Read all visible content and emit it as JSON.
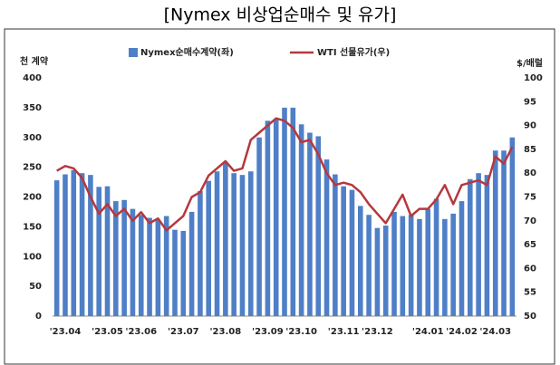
{
  "chart_data": {
    "type": "bar_line",
    "title": "[Nymex 비상업순매수 및 유가]",
    "y_label": "천 계약",
    "y2_label": "$/배럴",
    "legend": "top",
    "grid": false,
    "categories": [
      null,
      "'23.04",
      null,
      null,
      null,
      null,
      "'23.05",
      null,
      null,
      null,
      "'23.06",
      null,
      null,
      null,
      null,
      "'23.07",
      null,
      null,
      null,
      null,
      "'23.08",
      null,
      null,
      null,
      null,
      "'23.09",
      null,
      null,
      null,
      "'23.10",
      null,
      null,
      null,
      null,
      "'23.11",
      null,
      null,
      null,
      "'23.12",
      null,
      null,
      null,
      null,
      null,
      "'24.01",
      null,
      null,
      null,
      "'24.02",
      null,
      null,
      null,
      "'24.03",
      null,
      null
    ],
    "ylim": [
      0,
      400
    ],
    "yticks": [
      0,
      50,
      100,
      150,
      200,
      250,
      300,
      350,
      400
    ],
    "y2lim": [
      50,
      100
    ],
    "y2ticks": [
      50,
      55,
      60,
      65,
      70,
      75,
      80,
      85,
      90,
      95,
      100
    ],
    "series": [
      {
        "name": "Nymex순매수계약(좌)",
        "color": "#4f7fc6",
        "kind": "bar",
        "values": [
          228,
          238,
          245,
          240,
          237,
          217,
          218,
          193,
          195,
          180,
          170,
          165,
          162,
          168,
          145,
          143,
          175,
          210,
          227,
          243,
          258,
          240,
          237,
          243,
          300,
          328,
          330,
          350,
          350,
          322,
          308,
          302,
          263,
          238,
          218,
          212,
          185,
          170,
          148,
          152,
          175,
          168,
          170,
          163,
          180,
          197,
          163,
          172,
          193,
          230,
          240,
          237,
          278,
          278,
          300
        ]
      },
      {
        "name": "WTI 선물유가(우)",
        "color": "#b5383d",
        "kind": "line",
        "axis": "y2",
        "values": [
          80.5,
          81.5,
          81,
          79,
          75,
          71.5,
          73.5,
          71,
          72.5,
          70,
          71.8,
          69.5,
          70.5,
          68,
          69.5,
          71,
          75,
          76,
          79.5,
          81,
          82.5,
          80.5,
          81,
          87,
          88.5,
          90,
          91.5,
          91,
          89.5,
          86.5,
          87,
          84,
          80,
          77.5,
          78,
          77.5,
          76,
          73.5,
          71.5,
          69.5,
          72.5,
          75.5,
          71,
          72.5,
          72.5,
          74.5,
          77.5,
          73.5,
          77.5,
          78,
          78.5,
          77.5,
          83.5,
          82,
          85.5
        ]
      }
    ]
  }
}
